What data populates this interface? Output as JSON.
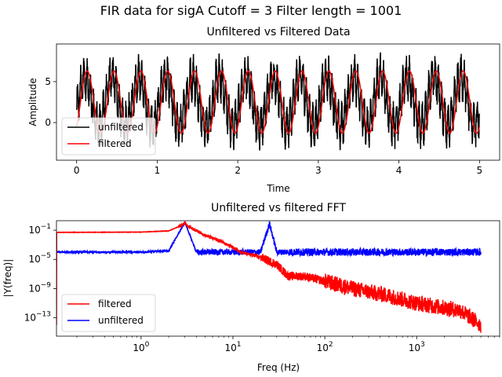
{
  "figure": {
    "suptitle": "FIR data for sigA  Cutoff = 3 Filter length = 1001"
  },
  "chart_data": [
    {
      "type": "line",
      "title": "Unfiltered vs Filtered Data",
      "xlabel": "Time",
      "ylabel": "Amplitude",
      "xlim": [
        -0.25,
        5.25
      ],
      "ylim": [
        -4.6,
        9.6
      ],
      "xticks": [
        0,
        1,
        2,
        3,
        4,
        5
      ],
      "xtick_labels": [
        "0",
        "1",
        "2",
        "3",
        "4",
        "5"
      ],
      "yticks": [
        0,
        5
      ],
      "ytick_labels": [
        "0",
        "5"
      ],
      "legend_position": "lower-left",
      "grid": false,
      "series": [
        {
          "name": "unfiltered",
          "color": "#000000",
          "description_values": {
            "offset": 2.5,
            "sine_amplitude": 3.0,
            "sine_frequency_hz": 3,
            "noise_amplitude": 2.0,
            "noise_frequency_hz": 25,
            "x_start": 0,
            "x_end": 5
          }
        },
        {
          "name": "filtered",
          "color": "#ff0000",
          "description_values": {
            "offset": 2.5,
            "sine_amplitude": 3.8,
            "sine_frequency_hz": 3,
            "x_start": 0,
            "x_end": 5
          }
        }
      ]
    },
    {
      "type": "line",
      "title": "Unfiltered vs filtered FFT",
      "xlabel": "Freq (Hz)",
      "ylabel": "|Y(freq)|",
      "xscale": "log",
      "yscale": "log",
      "xlim": [
        0.12,
        8000
      ],
      "ylim": [
        3e-16,
        2
      ],
      "xticks": [
        1,
        10,
        100,
        1000
      ],
      "xtick_labels": [
        "10^0",
        "10^1",
        "10^2",
        "10^3"
      ],
      "yticks": [
        1e-13,
        1e-09,
        1e-05,
        0.1
      ],
      "ytick_labels": [
        "10^-13",
        "10^-9",
        "10^-5",
        "10^-1"
      ],
      "legend_position": "lower-left",
      "grid": false,
      "series": [
        {
          "name": "filtered",
          "color": "#ff0000",
          "points": [
            [
              0.12,
              0.05
            ],
            [
              1,
              0.055
            ],
            [
              2,
              0.08
            ],
            [
              2.8,
              0.5
            ],
            [
              3,
              1.2
            ],
            [
              3.2,
              0.4
            ],
            [
              5,
              0.02
            ],
            [
              8,
              0.002
            ],
            [
              12,
              0.0001
            ],
            [
              20,
              2e-05
            ],
            [
              30,
              2e-06
            ],
            [
              40,
              5e-08
            ],
            [
              60,
              5e-08
            ],
            [
              100,
              1e-08
            ],
            [
              200,
              1e-09
            ],
            [
              500,
              1e-10
            ],
            [
              1000,
              1e-11
            ],
            [
              3000,
              1e-12
            ],
            [
              5000,
              1e-14
            ]
          ]
        },
        {
          "name": "unfiltered",
          "color": "#0000ff",
          "points": [
            [
              0.12,
              0.0001
            ],
            [
              1,
              0.0001
            ],
            [
              2,
              0.00015
            ],
            [
              3,
              1.2
            ],
            [
              4,
              0.0001
            ],
            [
              10,
              0.0001
            ],
            [
              20,
              0.0001
            ],
            [
              25,
              0.8
            ],
            [
              30,
              0.0001
            ],
            [
              100,
              0.0001
            ],
            [
              1000,
              0.0001
            ],
            [
              5000,
              0.0001
            ]
          ]
        }
      ]
    }
  ]
}
